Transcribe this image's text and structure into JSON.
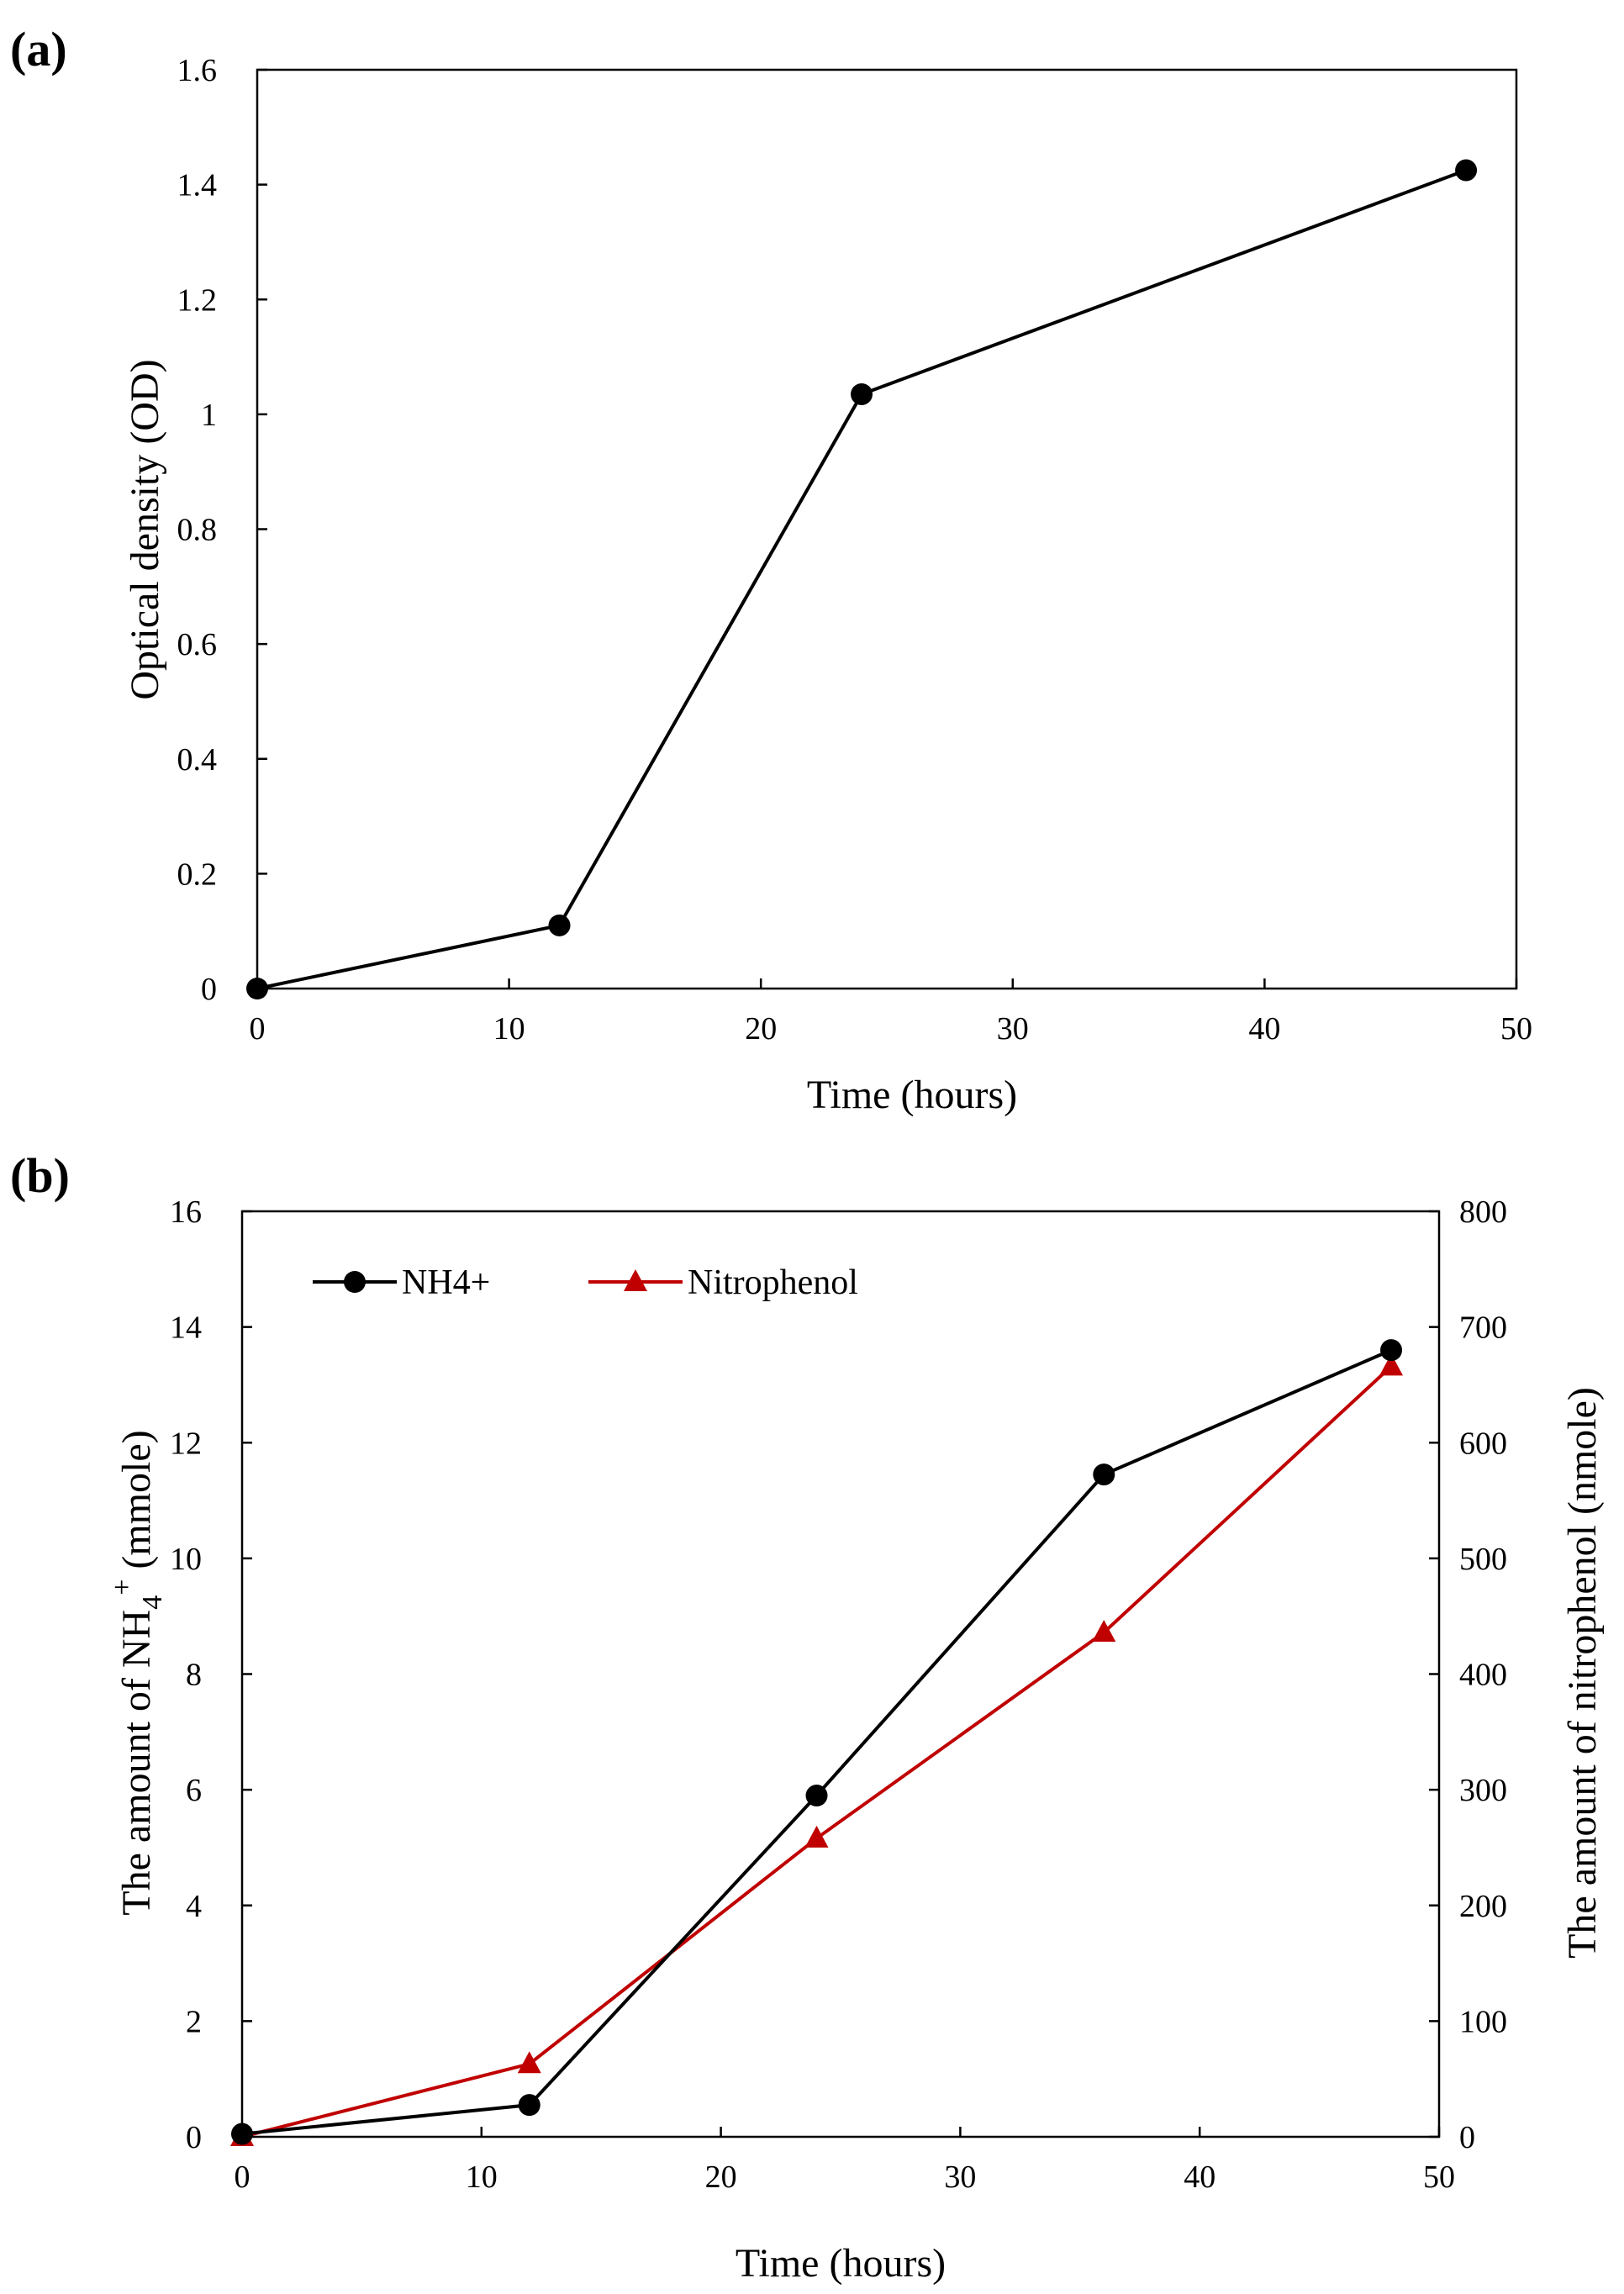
{
  "chart_data": [
    {
      "panel_label": "(a)",
      "type": "line",
      "x": [
        0,
        12,
        24,
        48
      ],
      "series": [
        {
          "name": "OD",
          "values": [
            0,
            0.11,
            1.035,
            1.425
          ],
          "color": "#000000",
          "marker": "circle"
        }
      ],
      "xlabel": "Time (hours)",
      "ylabel": "Optical density (OD)",
      "xlim": [
        0,
        50
      ],
      "ylim": [
        0,
        1.6
      ],
      "xticks": [
        "0",
        "10",
        "20",
        "30",
        "40",
        "50"
      ],
      "yticks": [
        "0",
        "0.2",
        "0.4",
        "0.6",
        "0.8",
        "1",
        "1.2",
        "1.4",
        "1.6"
      ]
    },
    {
      "panel_label": "(b)",
      "type": "line",
      "x": [
        0,
        12,
        24,
        36,
        48
      ],
      "series": [
        {
          "name": "NH4+",
          "values": [
            0.05,
            0.55,
            5.9,
            11.45,
            13.6
          ],
          "axis": "left",
          "color": "#000000",
          "marker": "circle"
        },
        {
          "name": "Nitrophenol",
          "values": [
            0,
            63,
            258,
            436,
            666
          ],
          "axis": "right",
          "color": "#c00000",
          "marker": "triangle"
        }
      ],
      "xlabel": "Time (hours)",
      "ylabel_prefix": "The amount of NH",
      "ylabel_sub": "4",
      "ylabel_sup": "+",
      "ylabel_suffix": " (mmole)",
      "y2label": "The amount of nitrophenol (nmole)",
      "xlim": [
        0,
        50
      ],
      "ylim": [
        0,
        16
      ],
      "y2lim": [
        0,
        800
      ],
      "xticks": [
        "0",
        "10",
        "20",
        "30",
        "40",
        "50"
      ],
      "yticks": [
        "0",
        "2",
        "4",
        "6",
        "8",
        "10",
        "12",
        "14",
        "16"
      ],
      "y2ticks": [
        "0",
        "100",
        "200",
        "300",
        "400",
        "500",
        "600",
        "700",
        "800"
      ],
      "legend": [
        "NH4+",
        "Nitrophenol"
      ]
    }
  ]
}
